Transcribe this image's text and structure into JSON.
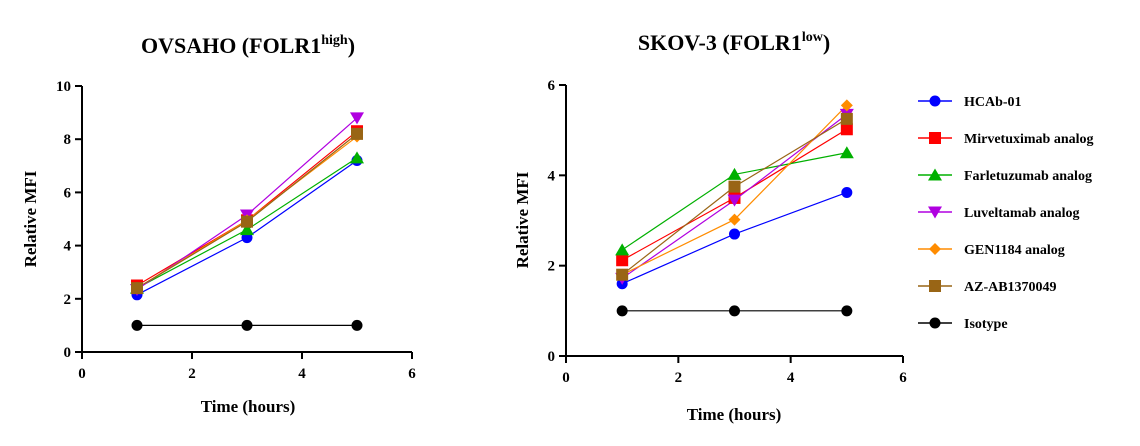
{
  "legend": [
    {
      "name": "HCAb-01",
      "color": "#0000ff",
      "marker": "circle"
    },
    {
      "name": "Mirvetuximab analog",
      "color": "#ff0000",
      "marker": "square"
    },
    {
      "name": "Farletuzumab analog",
      "color": "#00b000",
      "marker": "triangle-up"
    },
    {
      "name": "Luveltamab analog",
      "color": "#b000e0",
      "marker": "triangle-down"
    },
    {
      "name": "GEN1184 analog",
      "color": "#ff8c00",
      "marker": "diamond"
    },
    {
      "name": "AZ-AB1370049",
      "color": "#996515",
      "marker": "square"
    },
    {
      "name": "Isotype",
      "color": "#000000",
      "marker": "circle"
    }
  ],
  "chart_data": [
    {
      "type": "line",
      "title_main": "OVSAHO (FOLR1",
      "title_sup": "high",
      "title_end": ")",
      "xlabel": "Time (hours)",
      "ylabel": "Relative MFI",
      "xlim": [
        0,
        6
      ],
      "ylim": [
        0,
        10
      ],
      "xticks": [
        0,
        2,
        4,
        6
      ],
      "yticks": [
        0,
        2,
        4,
        6,
        8,
        10
      ],
      "x": [
        1,
        3,
        5
      ],
      "series": [
        {
          "name": "HCAb-01",
          "values": [
            2.15,
            4.3,
            7.2
          ]
        },
        {
          "name": "Mirvetuximab analog",
          "values": [
            2.5,
            4.95,
            8.3
          ]
        },
        {
          "name": "Farletuzumab analog",
          "values": [
            2.4,
            4.6,
            7.3
          ]
        },
        {
          "name": "Luveltamab analog",
          "values": [
            2.35,
            5.15,
            8.8
          ]
        },
        {
          "name": "GEN1184 analog",
          "values": [
            2.4,
            4.95,
            8.1
          ]
        },
        {
          "name": "AZ-AB1370049",
          "values": [
            2.4,
            4.9,
            8.2
          ]
        },
        {
          "name": "Isotype",
          "values": [
            1.0,
            1.0,
            1.0
          ]
        }
      ]
    },
    {
      "type": "line",
      "title_main": "SKOV-3 (FOLR1",
      "title_sup": "low",
      "title_end": ")",
      "xlabel": "Time (hours)",
      "ylabel": "Relative MFI",
      "xlim": [
        0,
        6
      ],
      "ylim": [
        0,
        6
      ],
      "xticks": [
        0,
        2,
        4,
        6
      ],
      "yticks": [
        0,
        2,
        4,
        6
      ],
      "x": [
        1,
        3,
        5
      ],
      "series": [
        {
          "name": "HCAb-01",
          "values": [
            1.6,
            2.7,
            3.62
          ]
        },
        {
          "name": "Mirvetuximab analog",
          "values": [
            2.12,
            3.5,
            5.02
          ]
        },
        {
          "name": "Farletuzumab analog",
          "values": [
            2.35,
            4.02,
            4.5
          ]
        },
        {
          "name": "Luveltamab analog",
          "values": [
            1.72,
            3.45,
            5.35
          ]
        },
        {
          "name": "GEN1184 analog",
          "values": [
            1.8,
            3.02,
            5.55
          ]
        },
        {
          "name": "AZ-AB1370049",
          "values": [
            1.8,
            3.75,
            5.25
          ]
        },
        {
          "name": "Isotype",
          "values": [
            1.0,
            1.0,
            1.0
          ]
        }
      ]
    }
  ]
}
